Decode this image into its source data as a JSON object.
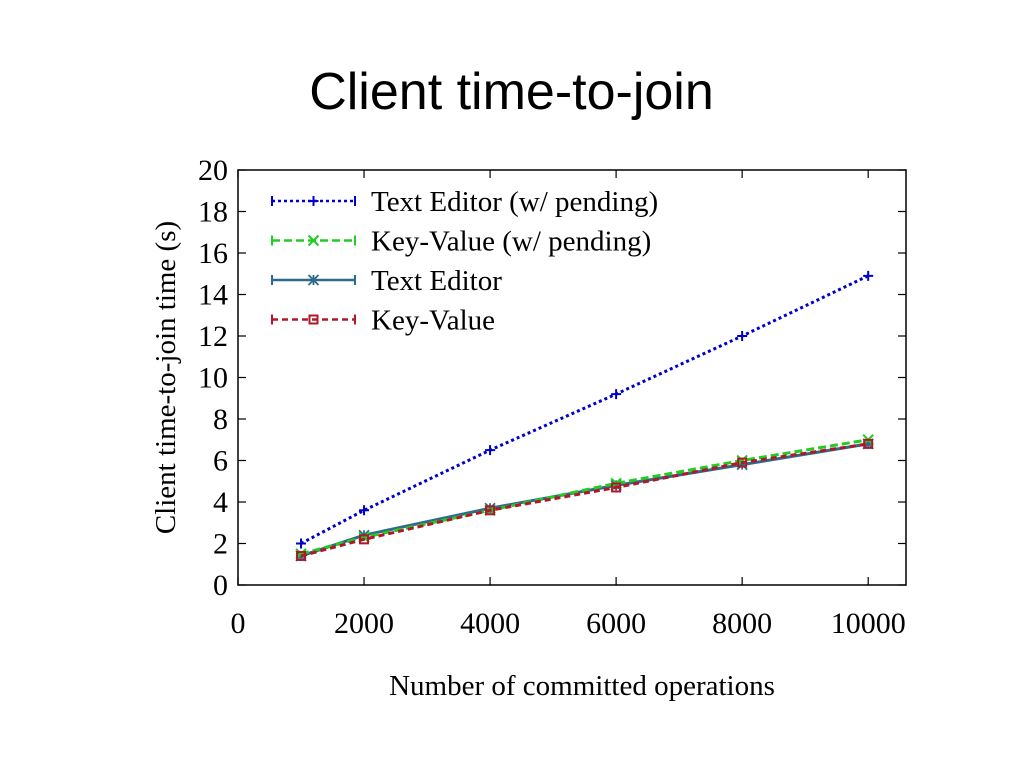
{
  "slide": {
    "title": "Client time-to-join"
  },
  "chart_data": {
    "type": "line",
    "title": "",
    "xlabel": "Number of committed operations",
    "ylabel": "Client time-to-join time (s)",
    "xlim": [
      0,
      10600
    ],
    "ylim": [
      0,
      20
    ],
    "xticks": [
      0,
      2000,
      4000,
      6000,
      8000,
      10000
    ],
    "yticks": [
      0,
      2,
      4,
      6,
      8,
      10,
      12,
      14,
      16,
      18,
      20
    ],
    "grid": false,
    "legend_position": "top-left",
    "x": [
      1000,
      2000,
      4000,
      6000,
      8000,
      10000
    ],
    "series": [
      {
        "name": "Text Editor (w/ pending)",
        "color": "#0000cc",
        "dash": "3,3",
        "marker": "plus",
        "values": [
          2.0,
          3.6,
          6.5,
          9.2,
          12.0,
          14.9
        ]
      },
      {
        "name": "Key-Value (w/ pending)",
        "color": "#22cc22",
        "dash": "8,4",
        "marker": "x",
        "values": [
          1.5,
          2.3,
          3.6,
          4.9,
          6.0,
          7.0
        ]
      },
      {
        "name": "Text Editor",
        "color": "#2e6b8a",
        "dash": "",
        "marker": "star",
        "values": [
          1.4,
          2.4,
          3.7,
          4.8,
          5.8,
          6.8
        ]
      },
      {
        "name": "Key-Value",
        "color": "#b0182a",
        "dash": "6,4",
        "marker": "square",
        "values": [
          1.4,
          2.2,
          3.6,
          4.7,
          5.9,
          6.8
        ]
      }
    ]
  }
}
